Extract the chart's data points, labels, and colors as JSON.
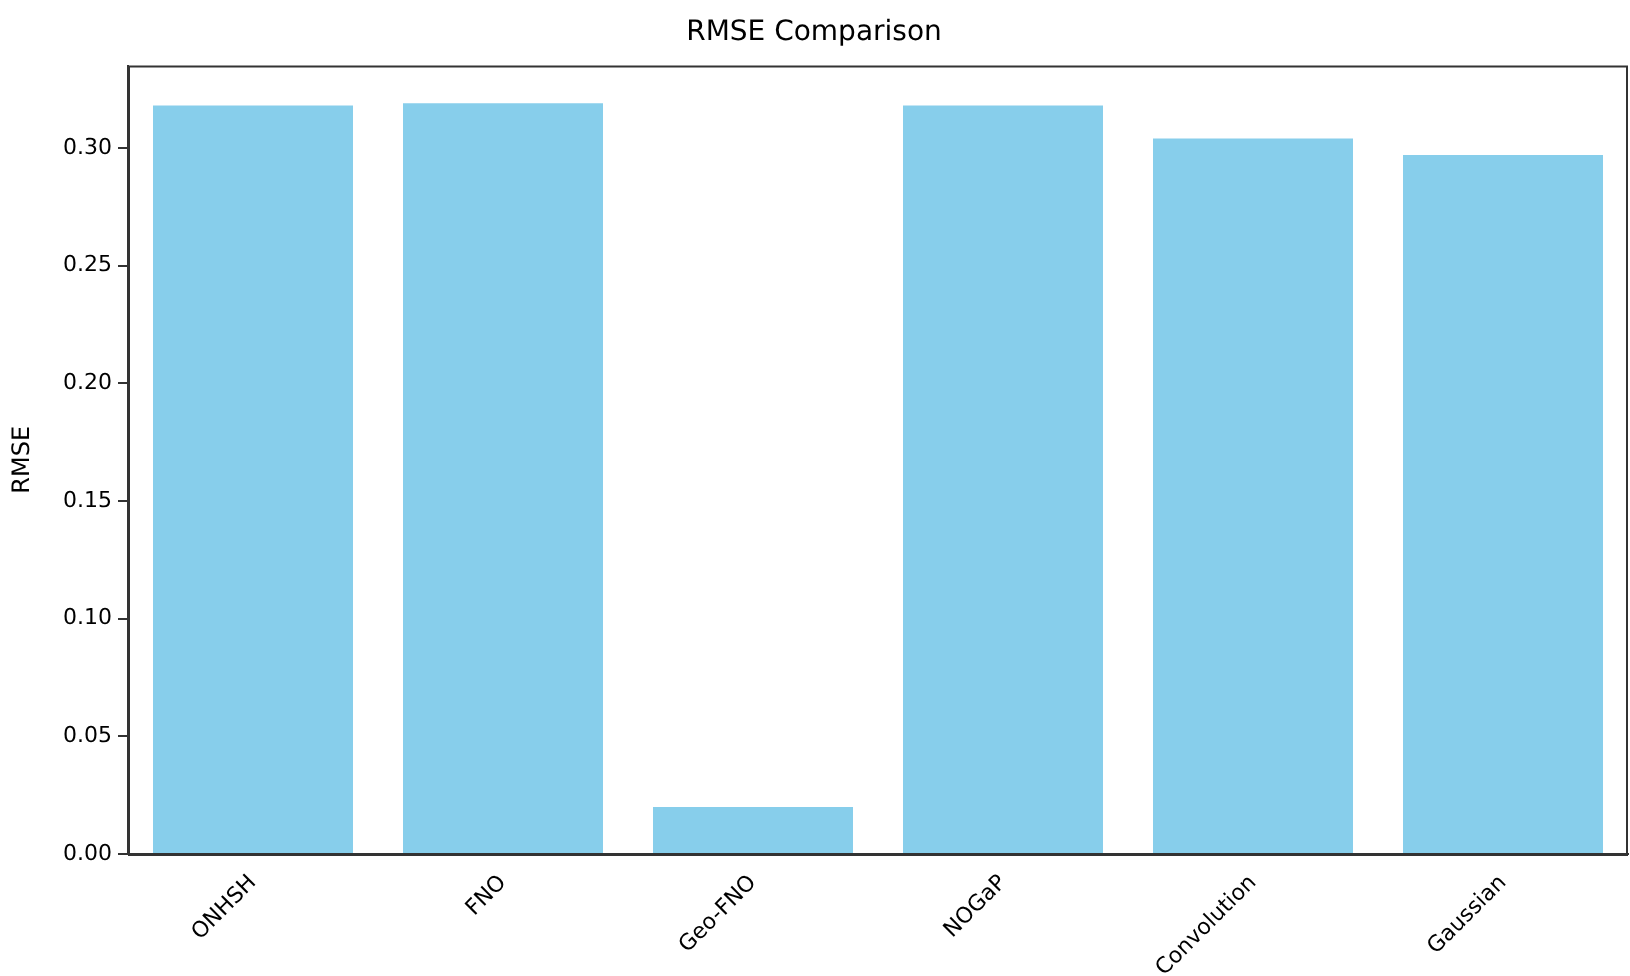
{
  "chart_data": {
    "type": "bar",
    "title": "RMSE Comparison",
    "ylabel": "RMSE",
    "categories": [
      "ONHSH",
      "FNO",
      "Geo-FNO",
      "NOGaP",
      "Convolution",
      "Gaussian"
    ],
    "values": [
      0.318,
      0.319,
      0.02,
      0.318,
      0.304,
      0.297
    ],
    "color": "#87ceeb",
    "ylim": [
      0,
      0.335
    ],
    "yticks": [
      {
        "value": 0,
        "label": "0.00"
      },
      {
        "value": 0.05,
        "label": "0.05"
      },
      {
        "value": 0.1,
        "label": "0.10"
      },
      {
        "value": 0.15,
        "label": "0.15"
      },
      {
        "value": 0.2,
        "label": "0.20"
      },
      {
        "value": 0.25,
        "label": "0.25"
      },
      {
        "value": 0.3,
        "label": "0.30"
      }
    ],
    "grid": false,
    "legend": false
  }
}
